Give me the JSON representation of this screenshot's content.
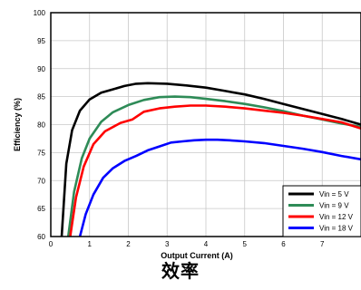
{
  "chart_data": {
    "type": "line",
    "title": "",
    "xlabel": "Output Current (A)",
    "ylabel": "Efficiency (%)",
    "xlim": [
      0,
      8
    ],
    "ylim": [
      60,
      100
    ],
    "x_ticks": [
      0,
      1,
      2,
      3,
      4,
      5,
      6,
      7
    ],
    "y_ticks": [
      60,
      65,
      70,
      75,
      80,
      85,
      90,
      95,
      100
    ],
    "grid": true,
    "legend_position": "bottom-right",
    "series": [
      {
        "name": "Vin = 5 V",
        "color": "#000000",
        "x": [
          0.28,
          0.4,
          0.55,
          0.75,
          1.0,
          1.3,
          1.6,
          1.9,
          2.2,
          2.5,
          3.0,
          3.5,
          4.0,
          4.5,
          5.0,
          5.5,
          6.0,
          6.5,
          7.0,
          7.5,
          8.0
        ],
        "y": [
          60,
          73,
          79,
          82.5,
          84.5,
          85.7,
          86.3,
          86.9,
          87.3,
          87.4,
          87.3,
          87.0,
          86.6,
          86.0,
          85.4,
          84.6,
          83.7,
          82.8,
          81.9,
          81.0,
          80.0
        ]
      },
      {
        "name": "Vin = 9 V",
        "color": "#2e8b57",
        "x": [
          0.45,
          0.6,
          0.8,
          1.0,
          1.3,
          1.6,
          2.0,
          2.4,
          2.8,
          3.2,
          3.6,
          4.0,
          4.5,
          5.0,
          5.5,
          6.0,
          6.5,
          7.0,
          7.5,
          8.0
        ],
        "y": [
          60,
          68,
          74,
          77.5,
          80.5,
          82.2,
          83.5,
          84.4,
          84.9,
          85.0,
          84.9,
          84.6,
          84.2,
          83.7,
          83.1,
          82.4,
          81.6,
          80.9,
          80.2,
          79.6
        ]
      },
      {
        "name": "Vin = 12 V",
        "color": "#ff0000",
        "x": [
          0.5,
          0.65,
          0.85,
          1.1,
          1.4,
          1.8,
          2.1,
          2.4,
          2.8,
          3.2,
          3.6,
          4.0,
          4.5,
          5.0,
          5.5,
          6.0,
          6.5,
          7.0,
          7.5,
          8.0
        ],
        "y": [
          60,
          67,
          72.5,
          76.5,
          78.8,
          80.3,
          80.9,
          82.3,
          82.9,
          83.2,
          83.4,
          83.4,
          83.2,
          82.9,
          82.5,
          82.1,
          81.6,
          81.0,
          80.4,
          79.3
        ]
      },
      {
        "name": "Vin = 18 V",
        "color": "#0000ff",
        "x": [
          0.75,
          0.9,
          1.1,
          1.35,
          1.6,
          1.9,
          2.2,
          2.5,
          2.8,
          3.1,
          3.4,
          3.7,
          4.0,
          4.3,
          4.6,
          5.0,
          5.5,
          6.0,
          6.5,
          7.0,
          7.5,
          8.0
        ],
        "y": [
          60,
          64,
          67.5,
          70.5,
          72.2,
          73.5,
          74.4,
          75.4,
          76.1,
          76.8,
          77.0,
          77.2,
          77.3,
          77.3,
          77.2,
          77.0,
          76.7,
          76.2,
          75.7,
          75.1,
          74.4,
          73.8
        ]
      }
    ]
  },
  "caption": "效率"
}
